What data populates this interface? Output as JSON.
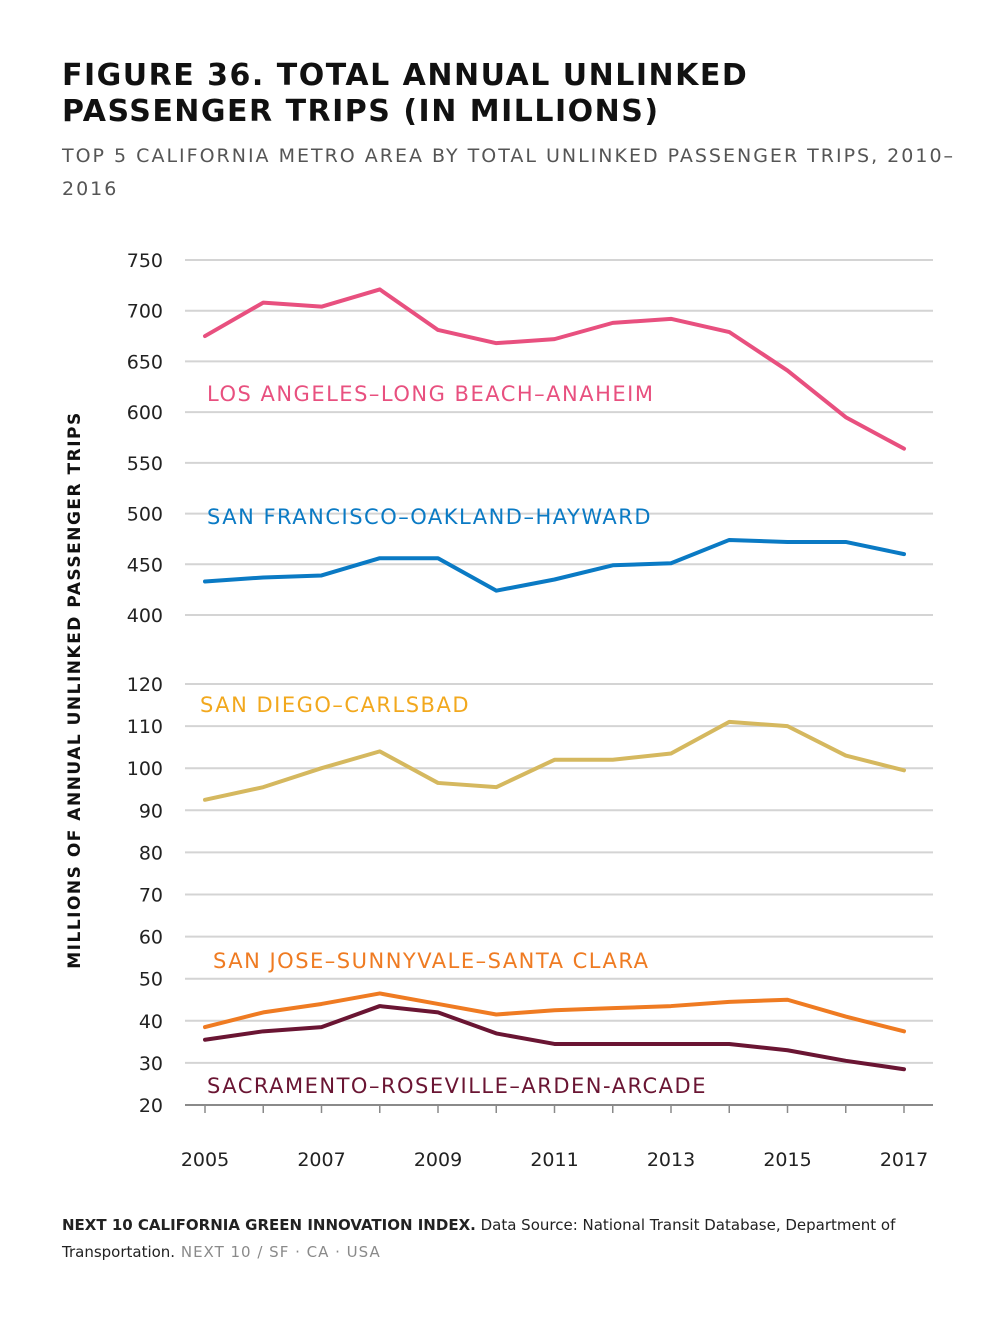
{
  "title": "FIGURE 36. TOTAL ANNUAL UNLINKED PASSENGER TRIPS (IN MILLIONS)",
  "subtitle": "TOP 5 CALIFORNIA METRO AREA BY TOTAL UNLINKED PASSENGER TRIPS, 2010–2016",
  "footer": {
    "source_bold": "NEXT 10 CALIFORNIA GREEN INNOVATION INDEX.",
    "source_text": " Data Source: National Transit Database, Department of Transportation.",
    "brand": " NEXT 10 / SF · CA · USA"
  },
  "chart_data": {
    "type": "line",
    "title": "FIGURE 36. TOTAL ANNUAL UNLINKED PASSENGER TRIPS (IN MILLIONS)",
    "ylabel": "MILLIONS OF ANNUAL UNLINKED PASSENGER TRIPS",
    "xlabel": "",
    "x": [
      2005,
      2006,
      2007,
      2008,
      2009,
      2010,
      2011,
      2012,
      2013,
      2014,
      2015,
      2016,
      2017
    ],
    "x_ticks": [
      2005,
      2007,
      2009,
      2011,
      2013,
      2015,
      2017
    ],
    "y_axis_broken": true,
    "y_ticks_upper": [
      400,
      450,
      500,
      550,
      600,
      650,
      700,
      750
    ],
    "y_ticks_lower": [
      20,
      30,
      40,
      50,
      60,
      70,
      80,
      90,
      100,
      110,
      120
    ],
    "ylim_upper": [
      400,
      750
    ],
    "ylim_lower": [
      20,
      120
    ],
    "grid": true,
    "series": [
      {
        "name": "LOS ANGELES–LONG BEACH–ANAHEIM",
        "color": "#e8507f",
        "axis": "upper",
        "values": [
          675,
          708,
          704,
          721,
          681,
          668,
          672,
          688,
          692,
          679,
          641,
          595,
          564
        ]
      },
      {
        "name": "SAN FRANCISCO–OAKLAND–HAYWARD",
        "color": "#0a7ac4",
        "axis": "upper",
        "values": [
          433,
          437,
          439,
          456,
          456,
          424,
          435,
          449,
          451,
          474,
          472,
          472,
          460
        ]
      },
      {
        "name": "SAN DIEGO–CARLSBAD",
        "color": "#d5b85f",
        "label_color": "#f2a81d",
        "axis": "lower",
        "values": [
          92.5,
          95.5,
          100,
          104,
          96.5,
          95.5,
          102,
          102,
          103.5,
          111,
          110,
          103,
          99.5
        ]
      },
      {
        "name": "SAN JOSE–SUNNYVALE–SANTA CLARA",
        "color": "#ef7b22",
        "axis": "lower",
        "values": [
          38.5,
          42,
          44,
          46.5,
          44,
          41.5,
          42.5,
          43,
          43.5,
          44.5,
          45,
          41,
          37.5
        ]
      },
      {
        "name": "SACRAMENTO–ROSEVILLE–ARDEN-ARCADE",
        "color": "#6a1533",
        "axis": "lower",
        "values": [
          35.5,
          37.5,
          38.5,
          43.5,
          42,
          37,
          34.5,
          34.5,
          34.5,
          34.5,
          33,
          30.5,
          28.5
        ]
      }
    ]
  }
}
